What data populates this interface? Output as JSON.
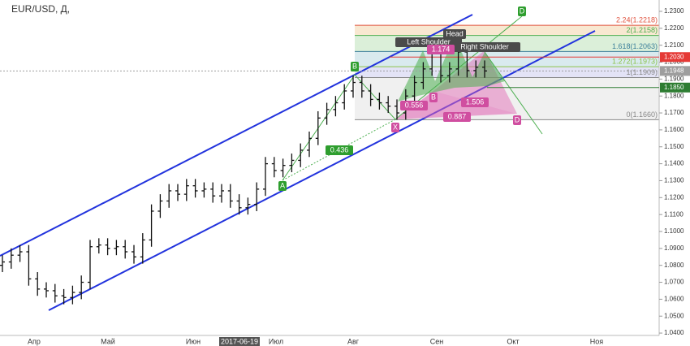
{
  "chart_data": {
    "type": "ohlc",
    "symbol": "EUR/USD, Д,",
    "x_labels": [
      "Апр",
      "Май",
      "Июн",
      "2017-06-19",
      "Июл",
      "Авг",
      "Сен",
      "Окт",
      "Ноя"
    ],
    "open": [
      1.08,
      1.082,
      1.086,
      1.088,
      1.072,
      1.066,
      1.065,
      1.062,
      1.061,
      1.064,
      1.07,
      1.091,
      1.092,
      1.09,
      1.091,
      1.088,
      1.085,
      1.095,
      1.112,
      1.118,
      1.124,
      1.122,
      1.127,
      1.124,
      1.125,
      1.121,
      1.124,
      1.118,
      1.114,
      1.116,
      1.125,
      1.14,
      1.136,
      1.139,
      1.142,
      1.148,
      1.155,
      1.167,
      1.172,
      1.176,
      1.183,
      1.188,
      1.183,
      1.178,
      1.176,
      1.174,
      1.17,
      1.18,
      1.188,
      1.196,
      1.205,
      1.192,
      1.196,
      1.206,
      1.195,
      1.197
    ],
    "high": [
      1.086,
      1.09,
      1.092,
      1.092,
      1.076,
      1.07,
      1.069,
      1.066,
      1.068,
      1.074,
      1.095,
      1.096,
      1.096,
      1.095,
      1.095,
      1.092,
      1.099,
      1.116,
      1.122,
      1.128,
      1.128,
      1.131,
      1.131,
      1.129,
      1.129,
      1.128,
      1.128,
      1.122,
      1.12,
      1.129,
      1.144,
      1.144,
      1.143,
      1.146,
      1.152,
      1.159,
      1.171,
      1.176,
      1.18,
      1.187,
      1.192,
      1.192,
      1.187,
      1.182,
      1.18,
      1.178,
      1.184,
      1.192,
      1.2,
      1.209,
      1.209,
      1.2,
      1.21,
      1.21,
      1.201,
      1.201
    ],
    "low": [
      1.076,
      1.078,
      1.082,
      1.068,
      1.062,
      1.061,
      1.058,
      1.057,
      1.057,
      1.06,
      1.066,
      1.087,
      1.086,
      1.086,
      1.084,
      1.081,
      1.081,
      1.091,
      1.108,
      1.114,
      1.118,
      1.118,
      1.12,
      1.12,
      1.117,
      1.117,
      1.114,
      1.11,
      1.11,
      1.112,
      1.121,
      1.132,
      1.132,
      1.135,
      1.138,
      1.144,
      1.151,
      1.163,
      1.168,
      1.172,
      1.179,
      1.179,
      1.174,
      1.172,
      1.17,
      1.166,
      1.166,
      1.176,
      1.184,
      1.192,
      1.188,
      1.188,
      1.192,
      1.191,
      1.191,
      1.1908
    ],
    "close": [
      1.082,
      1.086,
      1.088,
      1.072,
      1.066,
      1.065,
      1.062,
      1.061,
      1.064,
      1.07,
      1.091,
      1.092,
      1.09,
      1.091,
      1.088,
      1.085,
      1.095,
      1.112,
      1.118,
      1.124,
      1.122,
      1.127,
      1.124,
      1.125,
      1.121,
      1.124,
      1.118,
      1.114,
      1.116,
      1.125,
      1.14,
      1.136,
      1.139,
      1.142,
      1.148,
      1.155,
      1.167,
      1.172,
      1.176,
      1.183,
      1.188,
      1.183,
      1.178,
      1.176,
      1.174,
      1.17,
      1.18,
      1.188,
      1.196,
      1.205,
      1.192,
      1.196,
      1.206,
      1.195,
      1.197,
      1.1948
    ],
    "color": "#111111",
    "ylim": [
      1.0386,
      1.2367
    ],
    "yticks": [
      {
        "value": 1.23,
        "label": "1.2300"
      },
      {
        "value": 1.22,
        "label": "1.2200"
      },
      {
        "value": 1.21,
        "label": "1.2100"
      },
      {
        "value": 1.2,
        "label": "1.2000"
      },
      {
        "value": 1.19,
        "label": "1.1900"
      },
      {
        "value": 1.18,
        "label": "1.1800"
      },
      {
        "value": 1.17,
        "label": "1.1700"
      },
      {
        "value": 1.16,
        "label": "1.1600"
      },
      {
        "value": 1.15,
        "label": "1.1500"
      },
      {
        "value": 1.14,
        "label": "1.1400"
      },
      {
        "value": 1.13,
        "label": "1.1300"
      },
      {
        "value": 1.12,
        "label": "1.1200"
      },
      {
        "value": 1.11,
        "label": "1.1100"
      },
      {
        "value": 1.1,
        "label": "1.1000"
      },
      {
        "value": 1.09,
        "label": "1.0900"
      },
      {
        "value": 1.08,
        "label": "1.0800"
      },
      {
        "value": 1.07,
        "label": "1.0700"
      },
      {
        "value": 1.06,
        "label": "1.0600"
      },
      {
        "value": 1.05,
        "label": "1.0500"
      },
      {
        "value": 1.04,
        "label": "1.0400"
      }
    ],
    "fib_levels": [
      {
        "value": 1.2218,
        "label": "2.24(1.2218)",
        "color": "#e0533f",
        "band_color": "#f6e2c6"
      },
      {
        "value": 1.2158,
        "label": "2(1.2158)",
        "color": "#4caf50",
        "band_color": "#d2ebcf"
      },
      {
        "value": 1.2063,
        "label": "1.618(1.2063)",
        "color": "#3c7f9a",
        "band_color": "#cfe5ea"
      },
      {
        "value": 1.1973,
        "label": "1.272(1.1973)",
        "color": "#8bc34a",
        "band_color": "#dcdcf4"
      },
      {
        "value": 1.1909,
        "label": "1(1.1909)",
        "color": "#888888",
        "band_color": "#ececec"
      },
      {
        "value": 1.166,
        "label": "0(1.1660)",
        "color": "#888888"
      }
    ],
    "price_tags": [
      {
        "value": 1.203,
        "label": "1.2030",
        "color": "#e53935"
      },
      {
        "value": 1.1948,
        "label": "1.1948",
        "color": "#9e9e9e"
      },
      {
        "value": 1.185,
        "label": "1.1850",
        "color": "#2e7d32"
      }
    ],
    "annotations": [
      "Left Shoulder",
      "Head",
      "Right Shoulder",
      "A",
      "B",
      "D",
      "X",
      "B",
      "D",
      "0.436",
      "1.174",
      "0.556",
      "1.506",
      "0.887"
    ]
  }
}
